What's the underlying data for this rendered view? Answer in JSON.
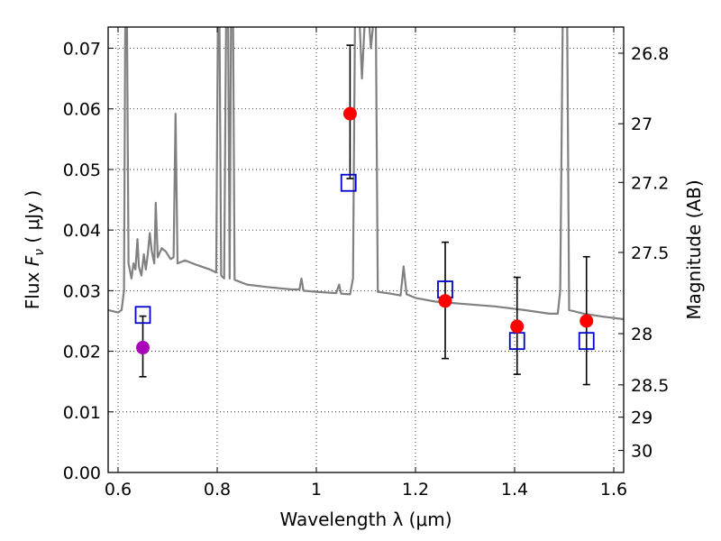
{
  "chart_data": {
    "type": "scatter",
    "title": "",
    "xlabel": "Wavelength  λ (μm)",
    "ylabel": "Flux  F_ν  ( μJy )",
    "ylabel_parts": {
      "prefix": "Flux  ",
      "symbol": "F",
      "subscript": "ν",
      "suffix": "  ( μJy )"
    },
    "y2label": "Magnitude (AB)",
    "xlim": [
      0.58,
      1.62
    ],
    "ylim": [
      0.0,
      0.0735
    ],
    "grid": true,
    "x_ticks": [
      0.6,
      0.8,
      1.0,
      1.2,
      1.4,
      1.6
    ],
    "x_tick_labels": [
      "0.6",
      "0.8",
      "1",
      "1.2",
      "1.4",
      "1.6"
    ],
    "y_ticks": [
      0.0,
      0.01,
      0.02,
      0.03,
      0.04,
      0.05,
      0.06,
      0.07
    ],
    "y_tick_labels": [
      "0.00",
      "0.01",
      "0.02",
      "0.03",
      "0.04",
      "0.05",
      "0.06",
      "0.07"
    ],
    "y2_ticks": [
      26.8,
      27,
      27.2,
      27.5,
      28,
      28.5,
      29,
      30
    ],
    "y2_tick_labels": [
      "26.8",
      "27",
      "27.2",
      "27.5",
      "28",
      "28.5",
      "29",
      "30"
    ],
    "y2_scale": "AB magnitude: m = 23.9 - 2.5 log10(flux in μJy)",
    "series": [
      {
        "kind": "line",
        "color": "#808080",
        "points": [
          [
            0.58,
            0.0268
          ],
          [
            0.59,
            0.0266
          ],
          [
            0.6,
            0.0264
          ],
          [
            0.607,
            0.0268
          ],
          [
            0.612,
            0.03
          ],
          [
            0.6145,
            0.075
          ],
          [
            0.618,
            0.075
          ],
          [
            0.621,
            0.0345
          ],
          [
            0.627,
            0.032
          ],
          [
            0.631,
            0.0345
          ],
          [
            0.635,
            0.0335
          ],
          [
            0.639,
            0.0385
          ],
          [
            0.642,
            0.034
          ],
          [
            0.647,
            0.0325
          ],
          [
            0.652,
            0.036
          ],
          [
            0.656,
            0.0335
          ],
          [
            0.66,
            0.036
          ],
          [
            0.664,
            0.0395
          ],
          [
            0.668,
            0.0365
          ],
          [
            0.673,
            0.0345
          ],
          [
            0.676,
            0.0445
          ],
          [
            0.68,
            0.0355
          ],
          [
            0.688,
            0.037
          ],
          [
            0.696,
            0.0365
          ],
          [
            0.706,
            0.0352
          ],
          [
            0.712,
            0.0355
          ],
          [
            0.716,
            0.0592
          ],
          [
            0.72,
            0.0345
          ],
          [
            0.735,
            0.035
          ],
          [
            0.76,
            0.0342
          ],
          [
            0.785,
            0.0335
          ],
          [
            0.798,
            0.033
          ],
          [
            0.8015,
            0.075
          ],
          [
            0.8045,
            0.075
          ],
          [
            0.808,
            0.0325
          ],
          [
            0.814,
            0.032
          ],
          [
            0.818,
            0.075
          ],
          [
            0.822,
            0.075
          ],
          [
            0.825,
            0.032
          ],
          [
            0.828,
            0.075
          ],
          [
            0.832,
            0.075
          ],
          [
            0.835,
            0.0318
          ],
          [
            0.86,
            0.031
          ],
          [
            0.9,
            0.0306
          ],
          [
            0.95,
            0.0302
          ],
          [
            0.966,
            0.0302
          ],
          [
            0.97,
            0.032
          ],
          [
            0.974,
            0.03
          ],
          [
            1.0,
            0.0298
          ],
          [
            1.04,
            0.0296
          ],
          [
            1.046,
            0.031
          ],
          [
            1.05,
            0.0295
          ],
          [
            1.068,
            0.0294
          ],
          [
            1.074,
            0.032
          ],
          [
            1.078,
            0.075
          ],
          [
            1.087,
            0.075
          ],
          [
            1.092,
            0.065
          ],
          [
            1.098,
            0.075
          ],
          [
            1.106,
            0.075
          ],
          [
            1.11,
            0.07
          ],
          [
            1.116,
            0.075
          ],
          [
            1.12,
            0.075
          ],
          [
            1.124,
            0.0298
          ],
          [
            1.15,
            0.0295
          ],
          [
            1.17,
            0.0292
          ],
          [
            1.176,
            0.034
          ],
          [
            1.182,
            0.0294
          ],
          [
            1.2,
            0.0288
          ],
          [
            1.24,
            0.0282
          ],
          [
            1.3,
            0.0278
          ],
          [
            1.36,
            0.0274
          ],
          [
            1.42,
            0.0268
          ],
          [
            1.47,
            0.0262
          ],
          [
            1.487,
            0.0262
          ],
          [
            1.492,
            0.03
          ],
          [
            1.497,
            0.075
          ],
          [
            1.506,
            0.075
          ],
          [
            1.51,
            0.0268
          ],
          [
            1.54,
            0.0262
          ],
          [
            1.58,
            0.0257
          ],
          [
            1.62,
            0.0253
          ]
        ]
      },
      {
        "kind": "markers",
        "marker": "open-square",
        "color": "#0000cc",
        "points": [
          [
            0.65,
            0.026
          ],
          [
            1.065,
            0.0478
          ],
          [
            1.26,
            0.0302
          ],
          [
            1.405,
            0.0217
          ],
          [
            1.545,
            0.0217
          ]
        ]
      },
      {
        "kind": "markers",
        "marker": "filled-circle",
        "color": "#ff0000",
        "points": [
          {
            "x": 1.068,
            "y": 0.0592,
            "err_low": 0.0485,
            "err_high": 0.0705
          },
          {
            "x": 1.26,
            "y": 0.0283,
            "err_low": 0.0188,
            "err_high": 0.038
          },
          {
            "x": 1.405,
            "y": 0.0241,
            "err_low": 0.0162,
            "err_high": 0.0322
          },
          {
            "x": 1.545,
            "y": 0.025,
            "err_low": 0.0145,
            "err_high": 0.0356
          }
        ]
      },
      {
        "kind": "markers",
        "marker": "filled-circle",
        "color": "#aa00bb",
        "points": [
          {
            "x": 0.65,
            "y": 0.0206,
            "err_low": 0.0158,
            "err_high": 0.0258
          }
        ]
      }
    ]
  }
}
